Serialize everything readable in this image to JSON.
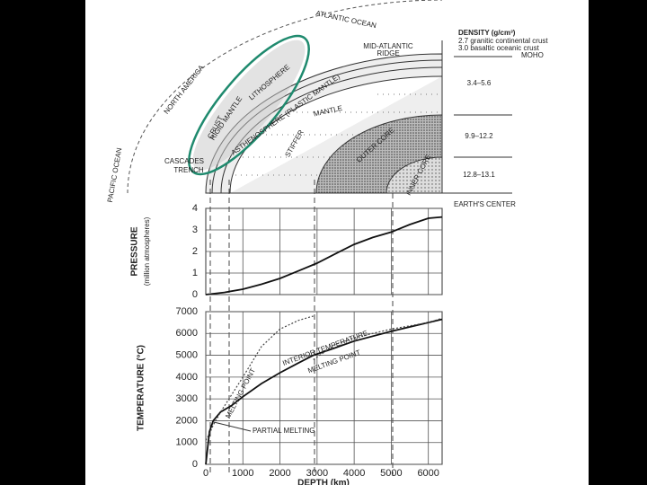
{
  "diagram": {
    "labels": [
      "ATLANTIC OCEAN",
      "NORTH AMERICA",
      "PACIFIC OCEAN",
      "CASCADES",
      "TRENCH",
      "MID-ATLANTIC",
      "RIDGE",
      "CRUST",
      "RIGID MANTLE",
      "LITHOSPHERE",
      "ASTHENOSPHERE (PLASTIC MANTLE)",
      "MANTLE",
      "STIFFER",
      "OUTER CORE",
      "INNER CORE",
      "MOHO",
      "EARTH'S CENTER"
    ],
    "density_title": "DENSITY (g/cm³)",
    "density_notes": [
      "2.7 granitic continental crust",
      "3.0 basaltic oceanic crust"
    ],
    "density_values": [
      "3.4–5.6",
      "9.9–12.2",
      "12.8–13.1"
    ]
  },
  "chart_data": [
    {
      "type": "line",
      "y_label": [
        "PRESSURE",
        "(million atmospheres)"
      ],
      "x": [
        0,
        500,
        1000,
        1500,
        2000,
        2500,
        3000,
        3500,
        4000,
        4500,
        5000,
        5500,
        6000,
        6371
      ],
      "series": [
        {
          "name": null,
          "color": "#111",
          "dash": false,
          "values": [
            0,
            0.1,
            0.25,
            0.48,
            0.75,
            1.1,
            1.46,
            1.9,
            2.33,
            2.65,
            2.9,
            3.25,
            3.54,
            3.6
          ]
        }
      ],
      "xlim": [
        0,
        6371
      ],
      "xticks": [
        1000,
        2000,
        3000,
        4000,
        5000,
        6000
      ],
      "ylim": [
        0,
        4
      ],
      "yticks": [
        0,
        1,
        2,
        3,
        4
      ],
      "grid": true
    },
    {
      "type": "line",
      "y_label": [
        "TEMPERATURE (°C)"
      ],
      "x_label": "DEPTH (km)",
      "x": [
        0,
        100,
        200,
        400,
        700,
        1000,
        1500,
        2000,
        2500,
        2900,
        2900,
        3500,
        4000,
        5000,
        6000,
        6371
      ],
      "series": [
        {
          "name": "INTERIOR TEMPERATURE",
          "color": "#111",
          "dash": false,
          "values": [
            0,
            1500,
            2000,
            2400,
            2700,
            3100,
            3700,
            4200,
            4650,
            5000,
            5000,
            5350,
            5650,
            6100,
            6500,
            6650
          ]
        },
        {
          "name": "MELTING POINT",
          "color": "#444",
          "dash": true,
          "values": [
            1100,
            1400,
            1800,
            2400,
            3200,
            4000,
            5400,
            6200,
            6600,
            6800,
            4800,
            5500,
            5800,
            6200,
            6500,
            6700
          ]
        }
      ],
      "annotations": [
        "PARTIAL MELTING"
      ],
      "xlim": [
        0,
        6371
      ],
      "xticks": [
        0,
        1000,
        2000,
        3000,
        4000,
        5000,
        6000
      ],
      "ylim": [
        0,
        7000
      ],
      "yticks": [
        0,
        1000,
        2000,
        3000,
        4000,
        5000,
        6000,
        7000
      ],
      "grid": true
    }
  ]
}
